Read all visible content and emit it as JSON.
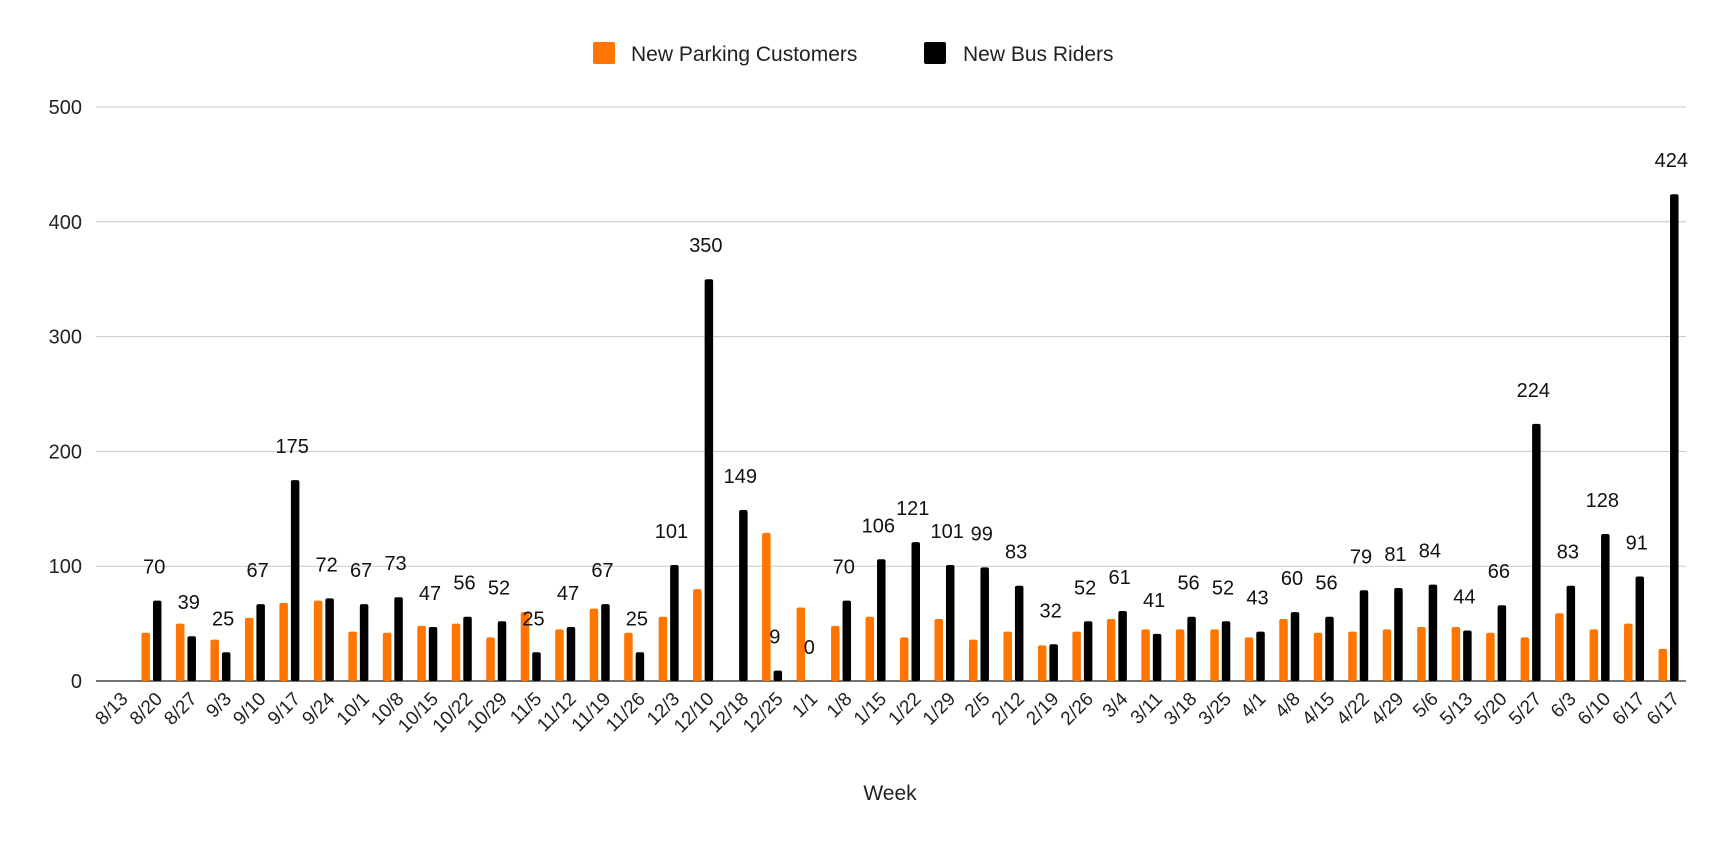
{
  "chart_data": {
    "type": "bar",
    "title": "",
    "xlabel": "Week",
    "ylabel": "",
    "ylim": [
      0,
      500
    ],
    "yticks": [
      0,
      100,
      200,
      300,
      400,
      500
    ],
    "grid": true,
    "legend_position": "top-center",
    "categories": [
      "8/13",
      "8/20",
      "8/27",
      "9/3",
      "9/10",
      "9/17",
      "9/24",
      "10/1",
      "10/8",
      "10/15",
      "10/22",
      "10/29",
      "11/5",
      "11/12",
      "11/19",
      "11/26",
      "12/3",
      "12/10",
      "12/18",
      "12/25",
      "1/1",
      "1/8",
      "1/15",
      "1/22",
      "1/29",
      "2/5",
      "2/12",
      "2/19",
      "2/26",
      "3/4",
      "3/11",
      "3/18",
      "3/25",
      "4/1",
      "4/8",
      "4/15",
      "4/22",
      "4/29",
      "5/6",
      "5/13",
      "5/20",
      "5/27",
      "6/3",
      "6/10",
      "6/17",
      "6/17"
    ],
    "series": [
      {
        "name": "New Parking Customers",
        "color": "#ff7500",
        "labels": false,
        "values": [
          0,
          42,
          50,
          36,
          55,
          68,
          70,
          43,
          42,
          48,
          50,
          38,
          60,
          45,
          63,
          42,
          56,
          80,
          0,
          129,
          64,
          48,
          56,
          38,
          54,
          36,
          43,
          31,
          43,
          54,
          45,
          45,
          45,
          38,
          54,
          42,
          43,
          45,
          47,
          47,
          42,
          38,
          59,
          45,
          50,
          28
        ]
      },
      {
        "name": "New Bus Riders",
        "color": "#000000",
        "labels": true,
        "values": [
          0,
          70,
          39,
          25,
          67,
          175,
          72,
          67,
          73,
          47,
          56,
          52,
          25,
          47,
          67,
          25,
          101,
          350,
          149,
          9,
          0,
          70,
          106,
          121,
          101,
          99,
          83,
          32,
          52,
          61,
          41,
          56,
          52,
          43,
          60,
          56,
          79,
          81,
          84,
          44,
          66,
          224,
          83,
          128,
          91,
          424
        ],
        "label_text": [
          "",
          "70",
          "39",
          "25",
          "67",
          "175",
          "72",
          "67",
          "73",
          "47",
          "56",
          "52",
          "25",
          "47",
          "67",
          "25",
          "101",
          "350",
          "149",
          "9",
          "0",
          "70",
          "106",
          "121",
          "101",
          "99",
          "83",
          "32",
          "52",
          "61",
          "41",
          "56",
          "52",
          "43",
          "60",
          "56",
          "79",
          "81",
          "84",
          "44",
          "66",
          "224",
          "83",
          "128",
          "91",
          "424"
        ]
      }
    ]
  }
}
